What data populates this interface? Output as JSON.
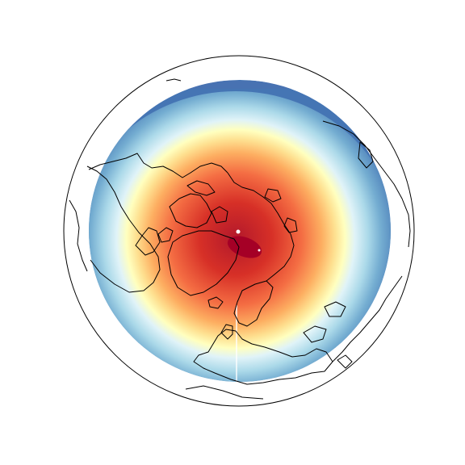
{
  "figure": {
    "projection": "north-polar-orthographic",
    "colormap": "RdYlBu_r",
    "colormap_stops": [
      "#313695",
      "#4575b4",
      "#74add1",
      "#abd9e9",
      "#e0f3f8",
      "#ffffbf",
      "#fee090",
      "#fdae61",
      "#f46d43",
      "#d73027",
      "#a50026"
    ],
    "field_peak_color": "#a50026",
    "field_edge_color": "#3f5fa8",
    "coastline_color": "#000000",
    "marker_color": "#ffffff",
    "seam_color": "#ffffff"
  }
}
